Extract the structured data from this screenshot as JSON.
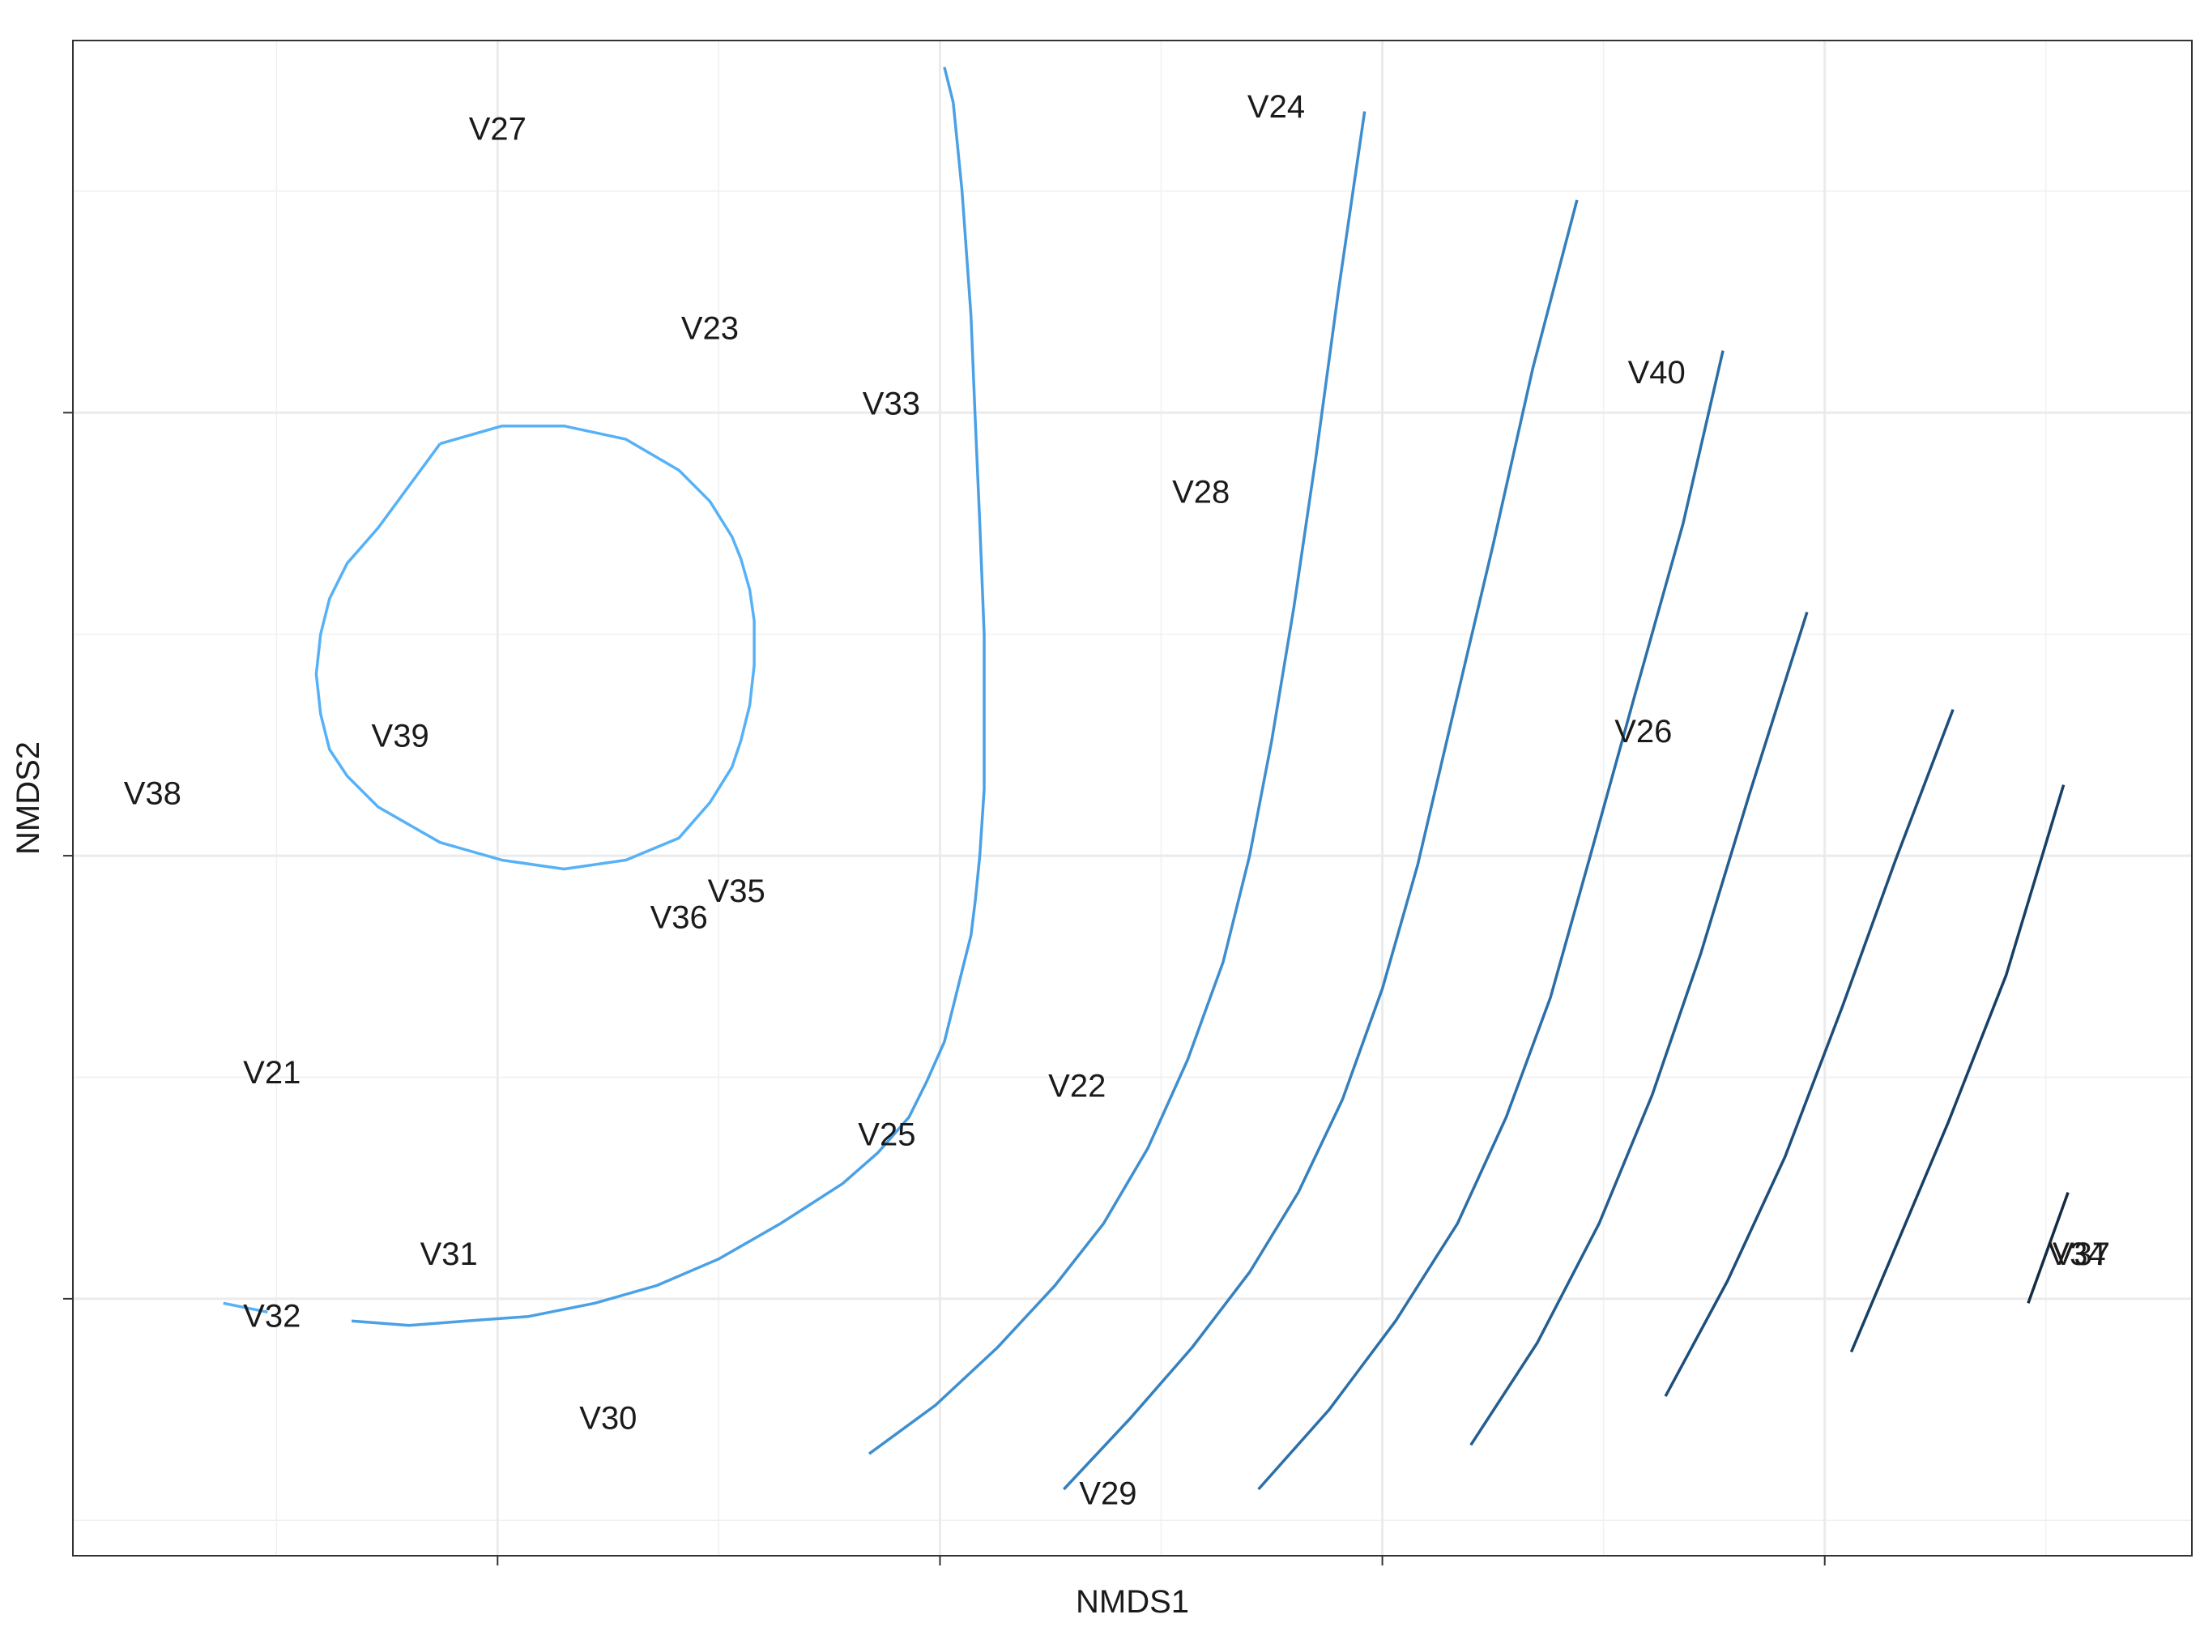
{
  "chart_data": {
    "type": "scatter",
    "xlabel": "NMDS1",
    "ylabel": "NMDS2",
    "xlim": [
      -0.0196,
      0.0283
    ],
    "ylim": [
      -0.0058,
      0.0284
    ],
    "x_ticks": [
      -0.01,
      0.0,
      0.01,
      0.02
    ],
    "y_ticks": [
      0.0,
      0.01,
      0.02
    ],
    "grid": true,
    "legend": "none",
    "points": [
      {
        "label": "V27",
        "x": -0.01,
        "y": 0.0264
      },
      {
        "label": "V24",
        "x": 0.0076,
        "y": 0.0269
      },
      {
        "label": "V23",
        "x": -0.0052,
        "y": 0.0219
      },
      {
        "label": "V33",
        "x": -0.0011,
        "y": 0.0202
      },
      {
        "label": "V40",
        "x": 0.0162,
        "y": 0.0209
      },
      {
        "label": "V28",
        "x": 0.0059,
        "y": 0.0182
      },
      {
        "label": "V26",
        "x": 0.0159,
        "y": 0.0128
      },
      {
        "label": "V39",
        "x": -0.0122,
        "y": 0.0127
      },
      {
        "label": "V38",
        "x": -0.0178,
        "y": 0.0114
      },
      {
        "label": "V35",
        "x": -0.0046,
        "y": 0.0092
      },
      {
        "label": "V36",
        "x": -0.0059,
        "y": 0.0086
      },
      {
        "label": "V21",
        "x": -0.0151,
        "y": 0.0051
      },
      {
        "label": "V22",
        "x": 0.0031,
        "y": 0.0048
      },
      {
        "label": "V25",
        "x": -0.0012,
        "y": 0.0037
      },
      {
        "label": "V31",
        "x": -0.0111,
        "y": 0.001
      },
      {
        "label": "V34",
        "x": 0.0257,
        "y": 0.001
      },
      {
        "label": "V37",
        "x": 0.0258,
        "y": 0.001
      },
      {
        "label": "V32",
        "x": -0.0151,
        "y": -0.0004
      },
      {
        "label": "V30",
        "x": -0.0075,
        "y": -0.0027
      },
      {
        "label": "V29",
        "x": 0.0038,
        "y": -0.0044
      }
    ],
    "contours": [
      {
        "color": "#56B1F7",
        "points": [
          [
            -0.0113,
            0.0193
          ],
          [
            -0.0099,
            0.0197
          ],
          [
            -0.0085,
            0.0197
          ],
          [
            -0.0071,
            0.0194
          ],
          [
            -0.0059,
            0.0187
          ],
          [
            -0.0052,
            0.018
          ],
          [
            -0.0047,
            0.0172
          ],
          [
            -0.0045,
            0.0167
          ],
          [
            -0.0043,
            0.016
          ],
          [
            -0.0042,
            0.0153
          ],
          [
            -0.0042,
            0.0143
          ],
          [
            -0.0043,
            0.0134
          ],
          [
            -0.0045,
            0.0126
          ],
          [
            -0.0047,
            0.012
          ],
          [
            -0.0052,
            0.0112
          ],
          [
            -0.0059,
            0.0104
          ],
          [
            -0.0071,
            0.0099
          ],
          [
            -0.0085,
            0.0097
          ],
          [
            -0.0099,
            0.0099
          ],
          [
            -0.0113,
            0.0103
          ],
          [
            -0.0127,
            0.0111
          ],
          [
            -0.0134,
            0.0118
          ],
          [
            -0.0138,
            0.0124
          ],
          [
            -0.014,
            0.0132
          ],
          [
            -0.0141,
            0.0141
          ],
          [
            -0.014,
            0.015
          ],
          [
            -0.0138,
            0.0158
          ],
          [
            -0.0134,
            0.0166
          ],
          [
            -0.0127,
            0.0174
          ],
          [
            -0.0113,
            0.0193
          ]
        ]
      },
      {
        "color": "#56B1F7",
        "points": [
          [
            -0.0162,
            -0.0001
          ],
          [
            -0.0152,
            -0.0003
          ]
        ]
      },
      {
        "color": "#4BA1E6",
        "points": [
          [
            -0.0133,
            -0.0005
          ],
          [
            -0.012,
            -0.0006
          ],
          [
            -0.0107,
            -0.0005
          ],
          [
            -0.0093,
            -0.0004
          ],
          [
            -0.0078,
            -0.0001
          ],
          [
            -0.0064,
            0.0003
          ],
          [
            -0.005,
            0.0009
          ],
          [
            -0.0036,
            0.0017
          ],
          [
            -0.0022,
            0.0026
          ],
          [
            -0.0014,
            0.0033
          ],
          [
            -0.0007,
            0.0041
          ],
          [
            -0.0003,
            0.0049
          ],
          [
            0.0001,
            0.0058
          ],
          [
            0.0003,
            0.0066
          ],
          [
            0.0005,
            0.0074
          ],
          [
            0.0007,
            0.0082
          ],
          [
            0.0008,
            0.009
          ],
          [
            0.0009,
            0.01
          ],
          [
            0.001,
            0.0115
          ],
          [
            0.001,
            0.0132
          ],
          [
            0.001,
            0.015
          ],
          [
            0.0009,
            0.0175
          ],
          [
            0.0008,
            0.0198
          ],
          [
            0.0007,
            0.0222
          ],
          [
            0.0005,
            0.025
          ],
          [
            0.0003,
            0.027
          ],
          [
            0.0001,
            0.0278
          ]
        ]
      },
      {
        "color": "#3F8FD0",
        "points": [
          [
            -0.0016,
            -0.0035
          ],
          [
            -0.0001,
            -0.0024
          ],
          [
            0.0013,
            -0.0011
          ],
          [
            0.0026,
            0.0003
          ],
          [
            0.0037,
            0.0017
          ],
          [
            0.0047,
            0.0034
          ],
          [
            0.0056,
            0.0054
          ],
          [
            0.0064,
            0.0076
          ],
          [
            0.007,
            0.01
          ],
          [
            0.0075,
            0.0126
          ],
          [
            0.008,
            0.0156
          ],
          [
            0.0085,
            0.019
          ],
          [
            0.009,
            0.0227
          ],
          [
            0.0096,
            0.0268
          ]
        ]
      },
      {
        "color": "#3580BD",
        "points": [
          [
            0.0028,
            -0.0043
          ],
          [
            0.0043,
            -0.0027
          ],
          [
            0.0057,
            -0.0011
          ],
          [
            0.007,
            0.0006
          ],
          [
            0.0081,
            0.0024
          ],
          [
            0.0091,
            0.0045
          ],
          [
            0.01,
            0.007
          ],
          [
            0.0108,
            0.0098
          ],
          [
            0.0116,
            0.0132
          ],
          [
            0.0125,
            0.017
          ],
          [
            0.0134,
            0.021
          ],
          [
            0.0144,
            0.0248
          ]
        ]
      },
      {
        "color": "#2C6FA8",
        "points": [
          [
            0.0072,
            -0.0043
          ],
          [
            0.0088,
            -0.0025
          ],
          [
            0.0103,
            -0.0005
          ],
          [
            0.0117,
            0.0017
          ],
          [
            0.0128,
            0.0041
          ],
          [
            0.0138,
            0.0068
          ],
          [
            0.0147,
            0.01
          ],
          [
            0.0157,
            0.0136
          ],
          [
            0.0168,
            0.0175
          ],
          [
            0.0177,
            0.0214
          ]
        ]
      },
      {
        "color": "#245E90",
        "points": [
          [
            0.012,
            -0.0033
          ],
          [
            0.0135,
            -0.001
          ],
          [
            0.0149,
            0.0017
          ],
          [
            0.0161,
            0.0046
          ],
          [
            0.0172,
            0.0078
          ],
          [
            0.0183,
            0.0114
          ],
          [
            0.0196,
            0.0155
          ]
        ]
      },
      {
        "color": "#1D4E7A",
        "points": [
          [
            0.0164,
            -0.0022
          ],
          [
            0.0178,
            0.0004
          ],
          [
            0.0191,
            0.0032
          ],
          [
            0.0204,
            0.0066
          ],
          [
            0.0216,
            0.0099
          ],
          [
            0.0229,
            0.0133
          ]
        ]
      },
      {
        "color": "#174066",
        "points": [
          [
            0.0206,
            -0.0012
          ],
          [
            0.0228,
            0.004
          ],
          [
            0.0241,
            0.0073
          ],
          [
            0.0254,
            0.0116
          ]
        ]
      },
      {
        "color": "#132B43",
        "points": [
          [
            0.0246,
            -0.0001
          ],
          [
            0.0255,
            0.0024
          ]
        ]
      }
    ]
  }
}
